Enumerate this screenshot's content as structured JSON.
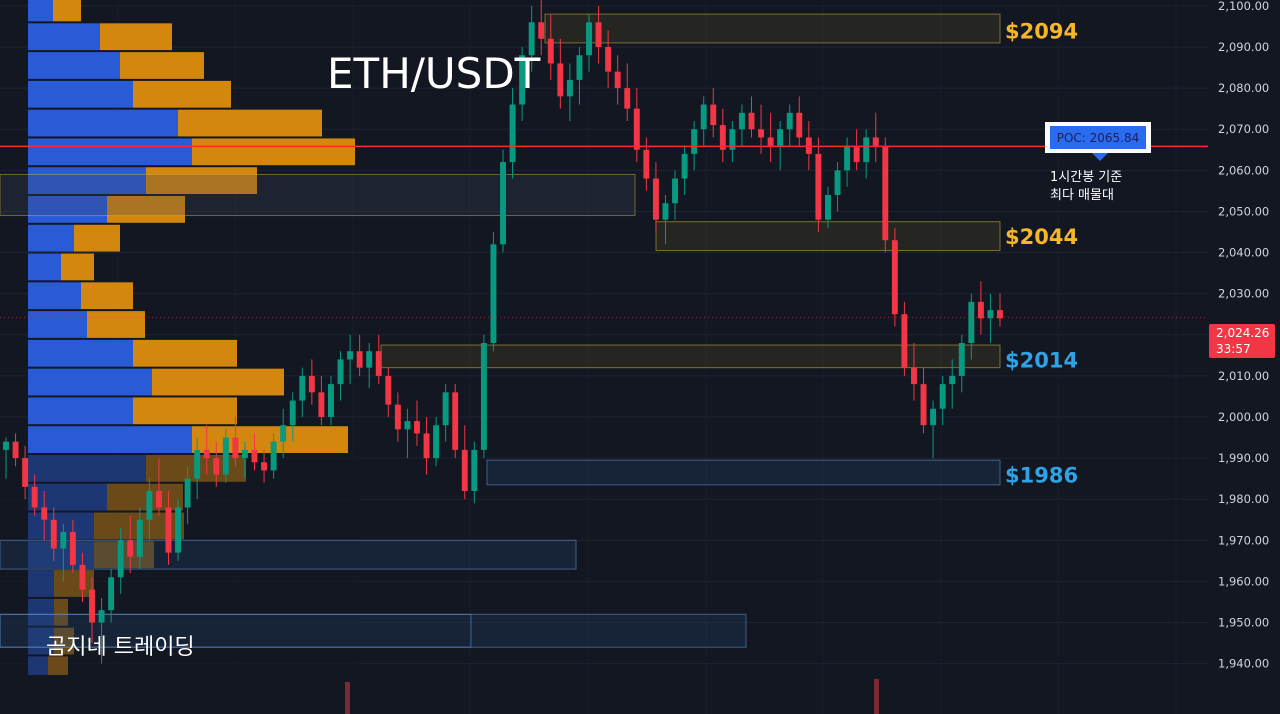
{
  "chart_data": {
    "type": "candlestick",
    "title": "ETH/USDT",
    "watermark": "곰지네 트레이딩",
    "y_axis": {
      "ticks": [
        "1,940.00",
        "1,950.00",
        "1,960.00",
        "1,970.00",
        "1,980.00",
        "1,990.00",
        "2,000.00",
        "2,010.00",
        "2,020.00",
        "2,030.00",
        "2,040.00",
        "2,050.00",
        "2,060.00",
        "2,070.00",
        "2,080.00",
        "2,090.00",
        "2,100.00"
      ],
      "tick_values": [
        1940,
        1950,
        1960,
        1970,
        1980,
        1990,
        2000,
        2010,
        2020,
        2030,
        2040,
        2050,
        2060,
        2070,
        2080,
        2090,
        2100
      ],
      "range": [
        1937,
        2103
      ],
      "position": "right"
    },
    "current_price": {
      "value": 2024.26,
      "label": "2,024.26",
      "countdown": "33:57",
      "color": "#f23645"
    },
    "poc": {
      "label": "POC: 2065.84",
      "value": 2065.84,
      "note_line1": "1시간봉 기준",
      "note_line2": "최다 매물대",
      "line_color": "#ff2b2b"
    },
    "levels": [
      {
        "label": "$2094",
        "value": 2094,
        "color": "#f5b62a"
      },
      {
        "label": "$2044",
        "value": 2044,
        "color": "#f5b62a"
      },
      {
        "label": "$2014",
        "value": 2014,
        "color": "#2fa3e6"
      },
      {
        "label": "$1986",
        "value": 1986,
        "color": "#2fa3e6"
      }
    ],
    "zones": [
      {
        "kind": "supply",
        "low": 2091,
        "high": 2098
      },
      {
        "kind": "zone",
        "low": 2049,
        "high": 2059
      },
      {
        "kind": "supply",
        "low": 2040.5,
        "high": 2047.5
      },
      {
        "kind": "supply",
        "low": 2012,
        "high": 2017.5
      },
      {
        "kind": "demand",
        "low": 1983.5,
        "high": 1989.5
      },
      {
        "kind": "demand",
        "low": 1963,
        "high": 1970
      },
      {
        "kind": "demand",
        "low": 1944,
        "high": 1952
      }
    ],
    "volume_profile": {
      "colors": {
        "buy": "#2a5bd7",
        "sell": "#d4870e"
      },
      "rows": [
        {
          "low": 2096,
          "high": 2103,
          "buy": 25,
          "sell": 28
        },
        {
          "low": 2089,
          "high": 2096,
          "buy": 72,
          "sell": 72
        },
        {
          "low": 2082,
          "high": 2089,
          "buy": 92,
          "sell": 84
        },
        {
          "low": 2075,
          "high": 2082,
          "buy": 105,
          "sell": 98
        },
        {
          "low": 2068,
          "high": 2075,
          "buy": 150,
          "sell": 144
        },
        {
          "low": 2061,
          "high": 2068,
          "buy": 164,
          "sell": 163
        },
        {
          "low": 2054,
          "high": 2061,
          "buy": 118,
          "sell": 111
        },
        {
          "low": 2047,
          "high": 2054,
          "buy": 79,
          "sell": 78
        },
        {
          "low": 2040,
          "high": 2047,
          "buy": 46,
          "sell": 46
        },
        {
          "low": 2033,
          "high": 2040,
          "buy": 33,
          "sell": 33
        },
        {
          "low": 2026,
          "high": 2033,
          "buy": 53,
          "sell": 52
        },
        {
          "low": 2019,
          "high": 2026,
          "buy": 59,
          "sell": 58
        },
        {
          "low": 2012,
          "high": 2019,
          "buy": 105,
          "sell": 104
        },
        {
          "low": 2005,
          "high": 2012,
          "buy": 124,
          "sell": 132
        },
        {
          "low": 1998,
          "high": 2005,
          "buy": 105,
          "sell": 104
        },
        {
          "low": 1991,
          "high": 1998,
          "buy": 164,
          "sell": 156
        },
        {
          "low": 1984,
          "high": 1991,
          "buy": 118,
          "sell": 100
        },
        {
          "low": 1977,
          "high": 1984,
          "buy": 79,
          "sell": 76
        },
        {
          "low": 1970,
          "high": 1977,
          "buy": 66,
          "sell": 90
        },
        {
          "low": 1963,
          "high": 1970,
          "buy": 66,
          "sell": 60
        },
        {
          "low": 1956,
          "high": 1963,
          "buy": 26,
          "sell": 40
        },
        {
          "low": 1949,
          "high": 1956,
          "buy": 26,
          "sell": 14
        },
        {
          "low": 1942,
          "high": 1949,
          "buy": 26,
          "sell": 20
        },
        {
          "low": 1937,
          "high": 1942,
          "buy": 20,
          "sell": 20
        }
      ]
    },
    "candle_colors": {
      "up": "#089981",
      "down": "#f23645"
    },
    "candles": [
      [
        1992,
        1995,
        1985,
        1994
      ],
      [
        1994,
        1996,
        1988,
        1990
      ],
      [
        1990,
        1993,
        1980,
        1983
      ],
      [
        1983,
        1986,
        1976,
        1978
      ],
      [
        1978,
        1982,
        1970,
        1975
      ],
      [
        1975,
        1978,
        1965,
        1968
      ],
      [
        1968,
        1974,
        1960,
        1972
      ],
      [
        1972,
        1975,
        1962,
        1964
      ],
      [
        1964,
        1967,
        1955,
        1958
      ],
      [
        1958,
        1961,
        1945,
        1950
      ],
      [
        1950,
        1956,
        1940,
        1953
      ],
      [
        1953,
        1963,
        1950,
        1961
      ],
      [
        1961,
        1973,
        1957,
        1970
      ],
      [
        1970,
        1976,
        1962,
        1966
      ],
      [
        1966,
        1978,
        1963,
        1975
      ],
      [
        1975,
        1985,
        1970,
        1982
      ],
      [
        1982,
        1990,
        1976,
        1978
      ],
      [
        1978,
        1982,
        1964,
        1967
      ],
      [
        1967,
        1980,
        1965,
        1978
      ],
      [
        1978,
        1988,
        1974,
        1985
      ],
      [
        1985,
        1995,
        1980,
        1992
      ],
      [
        1992,
        1998,
        1986,
        1990
      ],
      [
        1990,
        1994,
        1983,
        1986
      ],
      [
        1986,
        1997,
        1984,
        1995
      ],
      [
        1995,
        2000,
        1988,
        1990
      ],
      [
        1990,
        1994,
        1985,
        1992
      ],
      [
        1992,
        1996,
        1987,
        1989
      ],
      [
        1989,
        1992,
        1984,
        1987
      ],
      [
        1987,
        1996,
        1985,
        1994
      ],
      [
        1994,
        2002,
        1990,
        1998
      ],
      [
        1998,
        2006,
        1994,
        2004
      ],
      [
        2004,
        2012,
        2000,
        2010
      ],
      [
        2010,
        2014,
        2003,
        2006
      ],
      [
        2006,
        2010,
        1998,
        2000
      ],
      [
        2000,
        2010,
        1998,
        2008
      ],
      [
        2008,
        2016,
        2004,
        2014
      ],
      [
        2014,
        2020,
        2008,
        2016
      ],
      [
        2016,
        2020,
        2010,
        2012
      ],
      [
        2012,
        2018,
        2007,
        2016
      ],
      [
        2016,
        2020,
        2008,
        2010
      ],
      [
        2010,
        2012,
        2000,
        2003
      ],
      [
        2003,
        2006,
        1994,
        1997
      ],
      [
        1997,
        2002,
        1990,
        1999
      ],
      [
        1999,
        2004,
        1993,
        1996
      ],
      [
        1996,
        2000,
        1986,
        1990
      ],
      [
        1990,
        2000,
        1988,
        1998
      ],
      [
        1998,
        2008,
        1994,
        2006
      ],
      [
        2006,
        2008,
        1990,
        1992
      ],
      [
        1992,
        1998,
        1980,
        1982
      ],
      [
        1982,
        1994,
        1979,
        1992
      ],
      [
        1992,
        2020,
        1990,
        2018
      ],
      [
        2018,
        2045,
        2016,
        2042
      ],
      [
        2042,
        2065,
        2040,
        2062
      ],
      [
        2062,
        2080,
        2058,
        2076
      ],
      [
        2076,
        2090,
        2072,
        2088
      ],
      [
        2088,
        2100,
        2084,
        2096
      ],
      [
        2096,
        2104,
        2088,
        2092
      ],
      [
        2092,
        2098,
        2082,
        2086
      ],
      [
        2086,
        2092,
        2075,
        2078
      ],
      [
        2078,
        2086,
        2072,
        2082
      ],
      [
        2082,
        2090,
        2076,
        2088
      ],
      [
        2088,
        2098,
        2084,
        2096
      ],
      [
        2096,
        2100,
        2086,
        2090
      ],
      [
        2090,
        2094,
        2080,
        2084
      ],
      [
        2084,
        2088,
        2076,
        2080
      ],
      [
        2080,
        2086,
        2072,
        2075
      ],
      [
        2075,
        2080,
        2062,
        2065
      ],
      [
        2065,
        2068,
        2055,
        2058
      ],
      [
        2058,
        2062,
        2045,
        2048
      ],
      [
        2048,
        2054,
        2042,
        2052
      ],
      [
        2052,
        2060,
        2048,
        2058
      ],
      [
        2058,
        2066,
        2054,
        2064
      ],
      [
        2064,
        2072,
        2060,
        2070
      ],
      [
        2070,
        2078,
        2066,
        2076
      ],
      [
        2076,
        2080,
        2068,
        2071
      ],
      [
        2071,
        2075,
        2062,
        2065
      ],
      [
        2065,
        2072,
        2062,
        2070
      ],
      [
        2070,
        2076,
        2066,
        2074
      ],
      [
        2074,
        2078,
        2068,
        2070
      ],
      [
        2070,
        2076,
        2064,
        2068
      ],
      [
        2068,
        2074,
        2062,
        2066
      ],
      [
        2066,
        2072,
        2060,
        2070
      ],
      [
        2070,
        2076,
        2066,
        2074
      ],
      [
        2074,
        2078,
        2066,
        2068
      ],
      [
        2068,
        2072,
        2060,
        2064
      ],
      [
        2064,
        2068,
        2045,
        2048
      ],
      [
        2048,
        2056,
        2046,
        2054
      ],
      [
        2054,
        2062,
        2050,
        2060
      ],
      [
        2060,
        2068,
        2056,
        2066
      ],
      [
        2066,
        2070,
        2060,
        2062
      ],
      [
        2062,
        2070,
        2058,
        2068
      ],
      [
        2068,
        2074,
        2062,
        2066
      ],
      [
        2066,
        2068,
        2040,
        2043
      ],
      [
        2043,
        2046,
        2022,
        2025
      ],
      [
        2025,
        2028,
        2010,
        2012
      ],
      [
        2012,
        2018,
        2004,
        2008
      ],
      [
        2008,
        2012,
        1996,
        1998
      ],
      [
        1998,
        2004,
        1990,
        2002
      ],
      [
        2002,
        2010,
        1998,
        2008
      ],
      [
        2008,
        2014,
        2002,
        2010
      ],
      [
        2010,
        2020,
        2006,
        2018
      ],
      [
        2018,
        2030,
        2014,
        2028
      ],
      [
        2028,
        2033,
        2020,
        2024
      ],
      [
        2024,
        2030,
        2018,
        2026
      ],
      [
        2026,
        2030,
        2022,
        2024
      ]
    ]
  }
}
